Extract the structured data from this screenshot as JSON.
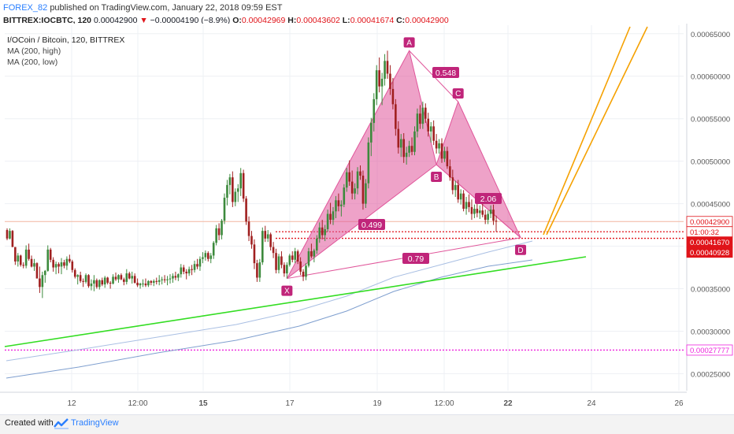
{
  "header": {
    "author": "FOREX_82",
    "published_text": "published on TradingView.com, January 22, 2018 09:59 EST",
    "symbol_interval": "BITTREX:IOCBTC, 120",
    "last_price": "0.00042900",
    "change": "−0.00004190 (−8.9%)",
    "open_label": "O:",
    "open": "0.00042969",
    "high_label": "H:",
    "high": "0.00043602",
    "low_label": "L:",
    "low": "0.00041674",
    "close_label": "C:",
    "close": "0.00042900"
  },
  "legend": {
    "symbol_line": "I/OCoin / Bitcoin, 120, BITTREX",
    "ma_high": "MA (200, high)",
    "ma_low": "MA (200, low)"
  },
  "footer": {
    "created_with": "Created with",
    "brand": "TradingView"
  },
  "colors": {
    "up": "#3d8a3d",
    "down": "#a02020",
    "pattern_fill": "#e0559a",
    "pattern_label": "#c0257a",
    "green_line": "#33dd22",
    "orange_line": "#f5a100",
    "ma_line": "#7f9fcf",
    "magenta_dotted": "#ee22dd",
    "red_dotted": "#e0141a"
  },
  "chart_data": {
    "type": "candlestick",
    "title": "I/OCoin / Bitcoin, 120, BITTREX",
    "x_ticks": [
      "12",
      "12:00",
      "15",
      "17",
      "19",
      "12:00",
      "22",
      "24",
      "26"
    ],
    "y_ticks": [
      "0.00065000",
      "0.00060000",
      "0.00055000",
      "0.00050000",
      "0.00045000",
      "0.00040000",
      "0.00035000",
      "0.00030000",
      "0.00025000"
    ],
    "ylim": [
      0.00023,
      0.00066
    ],
    "price_labels": [
      {
        "value": "0.00042900",
        "price": 0.000429,
        "style": "outline"
      },
      {
        "value": "01:00:32",
        "price": 0.000417,
        "style": "outline"
      },
      {
        "value": "0.00041670",
        "price": 0.0004167,
        "style": "red"
      },
      {
        "value": "0.00040928",
        "price": 0.00040928,
        "style": "red"
      },
      {
        "value": "0.00027777",
        "price": 0.00027777,
        "style": "magenta"
      }
    ],
    "harmonic_pattern": {
      "points": [
        {
          "label": "X",
          "bar": 103,
          "price": 0.000362
        },
        {
          "label": "A",
          "bar": 148,
          "price": 0.00063
        },
        {
          "label": "B",
          "bar": 158,
          "price": 0.000496
        },
        {
          "label": "C",
          "bar": 166,
          "price": 0.00057
        },
        {
          "label": "D",
          "bar": 189,
          "price": 0.00041
        }
      ],
      "ratios": [
        "0.499",
        "0.548",
        "2.06",
        "0.79"
      ]
    },
    "candles_ohlc": [
      [
        0.000419,
        0.000421,
        0.000407,
        0.000409
      ],
      [
        0.000409,
        0.000421,
        0.000408,
        0.000418
      ],
      [
        0.000418,
        0.000419,
        0.000399,
        0.000399
      ],
      [
        0.000399,
        0.000399,
        0.000378,
        0.000382
      ],
      [
        0.000382,
        0.000392,
        0.000376,
        0.000389
      ],
      [
        0.000389,
        0.00039,
        0.000376,
        0.000378
      ],
      [
        0.000378,
        0.000381,
        0.000374,
        0.000377
      ],
      [
        0.000377,
        0.000401,
        0.000374,
        0.000396
      ],
      [
        0.000396,
        0.000403,
        0.000383,
        0.000385
      ],
      [
        0.000385,
        0.000389,
        0.000375,
        0.000376
      ],
      [
        0.000376,
        0.000385,
        0.000371,
        0.00038
      ],
      [
        0.00038,
        0.000381,
        0.000362,
        0.000362
      ],
      [
        0.000362,
        0.000376,
        0.000345,
        0.000352
      ],
      [
        0.000352,
        0.00037,
        0.000339,
        0.000366
      ],
      [
        0.000366,
        0.000372,
        0.000357,
        0.000371
      ],
      [
        0.000371,
        0.000401,
        0.00037,
        0.000396
      ],
      [
        0.000396,
        0.000398,
        0.000381,
        0.000384
      ],
      [
        0.000384,
        0.000387,
        0.00037,
        0.000375
      ],
      [
        0.000375,
        0.000382,
        0.000367,
        0.000379
      ],
      [
        0.000379,
        0.000381,
        0.000368,
        0.000376
      ],
      [
        0.000376,
        0.000386,
        0.000367,
        0.000381
      ],
      [
        0.000381,
        0.000384,
        0.000374,
        0.000377
      ],
      [
        0.000377,
        0.000388,
        0.000372,
        0.000385
      ],
      [
        0.000385,
        0.00039,
        0.00038,
        0.000382
      ],
      [
        0.000382,
        0.000384,
        0.000369,
        0.000372
      ],
      [
        0.000372,
        0.000374,
        0.000362,
        0.000364
      ],
      [
        0.000364,
        0.000367,
        0.000355,
        0.000366
      ],
      [
        0.000366,
        0.00037,
        0.000357,
        0.000359
      ],
      [
        0.000359,
        0.000362,
        0.000352,
        0.000358
      ],
      [
        0.000358,
        0.000368,
        0.000356,
        0.000366
      ],
      [
        0.000366,
        0.000367,
        0.000351,
        0.000353
      ],
      [
        0.000353,
        0.000361,
        0.000348,
        0.000356
      ],
      [
        0.000356,
        0.000366,
        0.000347,
        0.00036
      ],
      [
        0.00036,
        0.000362,
        0.00035,
        0.000352
      ],
      [
        0.000352,
        0.000361,
        0.000349,
        0.00036
      ],
      [
        0.00036,
        0.000363,
        0.000353,
        0.000355
      ],
      [
        0.000355,
        0.000365,
        0.000351,
        0.000363
      ],
      [
        0.000363,
        0.000364,
        0.000355,
        0.000357
      ],
      [
        0.000357,
        0.000359,
        0.00035,
        0.000356
      ],
      [
        0.000356,
        0.000367,
        0.000355,
        0.000364
      ],
      [
        0.000364,
        0.000369,
        0.000359,
        0.000361
      ],
      [
        0.000361,
        0.000367,
        0.000357,
        0.000366
      ],
      [
        0.000366,
        0.000368,
        0.00036,
        0.000361
      ],
      [
        0.000361,
        0.000363,
        0.000354,
        0.000358
      ],
      [
        0.000358,
        0.000373,
        0.000355,
        0.000368
      ],
      [
        0.000368,
        0.00037,
        0.000361,
        0.000362
      ],
      [
        0.000362,
        0.00037,
        0.000356,
        0.000365
      ],
      [
        0.000365,
        0.000368,
        0.000356,
        0.000357
      ],
      [
        0.000357,
        0.000362,
        0.000352,
        0.000354
      ],
      [
        0.000354,
        0.000357,
        0.00035,
        0.000356
      ],
      [
        0.000356,
        0.000361,
        0.000352,
        0.000356
      ],
      [
        0.000356,
        0.000362,
        0.000352,
        0.000354
      ],
      [
        0.000354,
        0.00036,
        0.000352,
        0.000359
      ],
      [
        0.000359,
        0.00036,
        0.000354,
        0.000357
      ],
      [
        0.000357,
        0.000361,
        0.000353,
        0.000359
      ],
      [
        0.000359,
        0.000363,
        0.000355,
        0.000358
      ],
      [
        0.000358,
        0.000366,
        0.000354,
        0.00036
      ],
      [
        0.00036,
        0.000364,
        0.000355,
        0.000361
      ],
      [
        0.000361,
        0.000366,
        0.000357,
        0.00036
      ],
      [
        0.00036,
        0.000365,
        0.000354,
        0.000361
      ],
      [
        0.000361,
        0.000367,
        0.000356,
        0.000362
      ],
      [
        0.000362,
        0.000368,
        0.000357,
        0.000365
      ],
      [
        0.000365,
        0.00037,
        0.00036,
        0.000363
      ],
      [
        0.000363,
        0.000368,
        0.000359,
        0.000367
      ],
      [
        0.000367,
        0.000379,
        0.000363,
        0.000375
      ],
      [
        0.000375,
        0.000378,
        0.000367,
        0.00037
      ],
      [
        0.00037,
        0.000373,
        0.000361,
        0.000368
      ],
      [
        0.000368,
        0.000376,
        0.000365,
        0.000373
      ],
      [
        0.000373,
        0.000378,
        0.000366,
        0.000372
      ],
      [
        0.000372,
        0.000383,
        0.000369,
        0.000379
      ],
      [
        0.000379,
        0.000385,
        0.000373,
        0.000376
      ],
      [
        0.000376,
        0.000388,
        0.000371,
        0.000385
      ],
      [
        0.000385,
        0.000393,
        0.00038,
        0.000387
      ],
      [
        0.000387,
        0.000395,
        0.000383,
        0.000392
      ],
      [
        0.000392,
        0.000394,
        0.000382,
        0.000385
      ],
      [
        0.000385,
        0.000392,
        0.00038,
        0.000389
      ],
      [
        0.000389,
        0.000406,
        0.000385,
        0.000404
      ],
      [
        0.000404,
        0.000425,
        0.000401,
        0.000421
      ],
      [
        0.000421,
        0.000427,
        0.000407,
        0.000413
      ],
      [
        0.000413,
        0.000432,
        0.000408,
        0.00043
      ],
      [
        0.00043,
        0.000462,
        0.000426,
        0.000457
      ],
      [
        0.000457,
        0.000478,
        0.000448,
        0.000472
      ],
      [
        0.000472,
        0.000485,
        0.000461,
        0.000481
      ],
      [
        0.000481,
        0.000488,
        0.000446,
        0.000452
      ],
      [
        0.000452,
        0.000468,
        0.000447,
        0.000464
      ],
      [
        0.000464,
        0.000473,
        0.000452,
        0.000468
      ],
      [
        0.000468,
        0.000492,
        0.000459,
        0.000486
      ],
      [
        0.000486,
        0.00049,
        0.000452,
        0.000456
      ],
      [
        0.000456,
        0.000459,
        0.000425,
        0.000429
      ],
      [
        0.000429,
        0.000435,
        0.000406,
        0.000412
      ],
      [
        0.000412,
        0.000418,
        0.000397,
        0.000402
      ],
      [
        0.000402,
        0.000408,
        0.000373,
        0.00038
      ],
      [
        0.00038,
        0.000384,
        0.000358,
        0.000363
      ],
      [
        0.000363,
        0.000385,
        0.000358,
        0.000381
      ],
      [
        0.000381,
        0.000422,
        0.000378,
        0.000418
      ],
      [
        0.000418,
        0.000424,
        0.000405,
        0.000409
      ],
      [
        0.000409,
        0.000419,
        0.000405,
        0.000414
      ],
      [
        0.000414,
        0.000416,
        0.000395,
        0.000399
      ],
      [
        0.000399,
        0.000405,
        0.000386,
        0.000392
      ],
      [
        0.000392,
        0.000397,
        0.000368,
        0.000372
      ],
      [
        0.000372,
        0.000391,
        0.000368,
        0.000388
      ],
      [
        0.000388,
        0.000394,
        0.000374,
        0.000378
      ],
      [
        0.000378,
        0.000381,
        0.000364,
        0.000368
      ],
      [
        0.000368,
        0.000381,
        0.000362,
        0.000378
      ],
      [
        0.000378,
        0.000391,
        0.000376,
        0.000389
      ],
      [
        0.000389,
        0.000394,
        0.000381,
        0.000384
      ],
      [
        0.000384,
        0.000398,
        0.00038,
        0.000394
      ],
      [
        0.000394,
        0.000396,
        0.000379,
        0.000382
      ],
      [
        0.000382,
        0.000387,
        0.000366,
        0.00037
      ],
      [
        0.00037,
        0.000373,
        0.000359,
        0.000364
      ],
      [
        0.000364,
        0.00038,
        0.00036,
        0.000377
      ],
      [
        0.000377,
        0.000398,
        0.000375,
        0.000394
      ],
      [
        0.000394,
        0.000403,
        0.000386,
        0.000388
      ],
      [
        0.000388,
        0.000397,
        0.000381,
        0.000395
      ],
      [
        0.000395,
        0.000413,
        0.000391,
        0.000409
      ],
      [
        0.000409,
        0.000428,
        0.000404,
        0.000422
      ],
      [
        0.000422,
        0.000431,
        0.000408,
        0.000413
      ],
      [
        0.000413,
        0.000425,
        0.000406,
        0.00042
      ],
      [
        0.00042,
        0.000443,
        0.000417,
        0.000438
      ],
      [
        0.000438,
        0.000451,
        0.000426,
        0.000431
      ],
      [
        0.000431,
        0.000446,
        0.000425,
        0.000441
      ],
      [
        0.000441,
        0.000459,
        0.000433,
        0.000454
      ],
      [
        0.000454,
        0.000462,
        0.000441,
        0.000447
      ],
      [
        0.000447,
        0.000454,
        0.000435,
        0.000449
      ],
      [
        0.000449,
        0.000473,
        0.000446,
        0.000469
      ],
      [
        0.000469,
        0.000492,
        0.000464,
        0.000487
      ],
      [
        0.000487,
        0.000501,
        0.000471,
        0.000476
      ],
      [
        0.000476,
        0.000489,
        0.000455,
        0.000462
      ],
      [
        0.000462,
        0.000474,
        0.000455,
        0.000468
      ],
      [
        0.000468,
        0.000493,
        0.000461,
        0.000488
      ],
      [
        0.000488,
        0.000495,
        0.000478,
        0.000483
      ],
      [
        0.000483,
        0.000489,
        0.000443,
        0.00045
      ],
      [
        0.00045,
        0.000479,
        0.000445,
        0.000474
      ],
      [
        0.000474,
        0.000528,
        0.000468,
        0.000522
      ],
      [
        0.000522,
        0.000551,
        0.000506,
        0.000545
      ],
      [
        0.000545,
        0.00058,
        0.000535,
        0.000573
      ],
      [
        0.000573,
        0.000613,
        0.000566,
        0.000607
      ],
      [
        0.000607,
        0.000622,
        0.000581,
        0.000588
      ],
      [
        0.000588,
        0.000604,
        0.000566,
        0.000597
      ],
      [
        0.000597,
        0.000626,
        0.000589,
        0.000618
      ],
      [
        0.000618,
        0.00063,
        0.000597,
        0.000603
      ],
      [
        0.000603,
        0.000613,
        0.000578,
        0.000585
      ],
      [
        0.000585,
        0.000598,
        0.000561,
        0.000567
      ],
      [
        0.000567,
        0.000573,
        0.00053,
        0.000538
      ],
      [
        0.000538,
        0.000547,
        0.000509,
        0.000516
      ],
      [
        0.000516,
        0.000532,
        0.000505,
        0.000526
      ],
      [
        0.000526,
        0.000533,
        0.000498,
        0.000505
      ],
      [
        0.000505,
        0.000517,
        0.000496,
        0.00051
      ],
      [
        0.00051,
        0.000524,
        0.000505,
        0.000518
      ],
      [
        0.000518,
        0.000528,
        0.000507,
        0.000511
      ],
      [
        0.000511,
        0.000541,
        0.000507,
        0.000535
      ],
      [
        0.000535,
        0.000562,
        0.000528,
        0.000556
      ],
      [
        0.000556,
        0.000566,
        0.000538,
        0.000544
      ],
      [
        0.000544,
        0.00057,
        0.000538,
        0.000563
      ],
      [
        0.000563,
        0.000568,
        0.000545,
        0.00055
      ],
      [
        0.00055,
        0.000557,
        0.000529,
        0.000535
      ],
      [
        0.000535,
        0.000546,
        0.000522,
        0.000541
      ],
      [
        0.000541,
        0.000548,
        0.000519,
        0.000524
      ],
      [
        0.000524,
        0.000532,
        0.000509,
        0.000515
      ],
      [
        0.000515,
        0.000526,
        0.000509,
        0.000521
      ],
      [
        0.000521,
        0.000527,
        0.000498,
        0.000503
      ],
      [
        0.000503,
        0.000517,
        0.000499,
        0.000512
      ],
      [
        0.000512,
        0.000517,
        0.000491,
        0.000494
      ],
      [
        0.000494,
        0.000502,
        0.000477,
        0.000481
      ],
      [
        0.000481,
        0.00049,
        0.000461,
        0.000466
      ],
      [
        0.000466,
        0.000477,
        0.000458,
        0.000472
      ],
      [
        0.000472,
        0.000478,
        0.000451,
        0.000455
      ],
      [
        0.000455,
        0.000467,
        0.000449,
        0.000462
      ],
      [
        0.000462,
        0.000466,
        0.000441,
        0.000444
      ],
      [
        0.000444,
        0.000458,
        0.000437,
        0.000452
      ],
      [
        0.000452,
        0.000461,
        0.00044,
        0.000446
      ],
      [
        0.000446,
        0.000455,
        0.000431,
        0.000438
      ],
      [
        0.000438,
        0.000449,
        0.000433,
        0.000444
      ],
      [
        0.000444,
        0.000452,
        0.000434,
        0.000439
      ],
      [
        0.000439,
        0.000448,
        0.000432,
        0.000442
      ],
      [
        0.000442,
        0.000452,
        0.000434,
        0.000437
      ],
      [
        0.000437,
        0.000443,
        0.000426,
        0.000431
      ],
      [
        0.000431,
        0.000442,
        0.000426,
        0.000438
      ],
      [
        0.000438,
        0.000448,
        0.000433,
        0.000443
      ],
      [
        0.000443,
        0.000449,
        0.000425,
        0.00043
      ],
      [
        0.00043,
        0.000436,
        0.000417,
        0.000429
      ]
    ]
  }
}
